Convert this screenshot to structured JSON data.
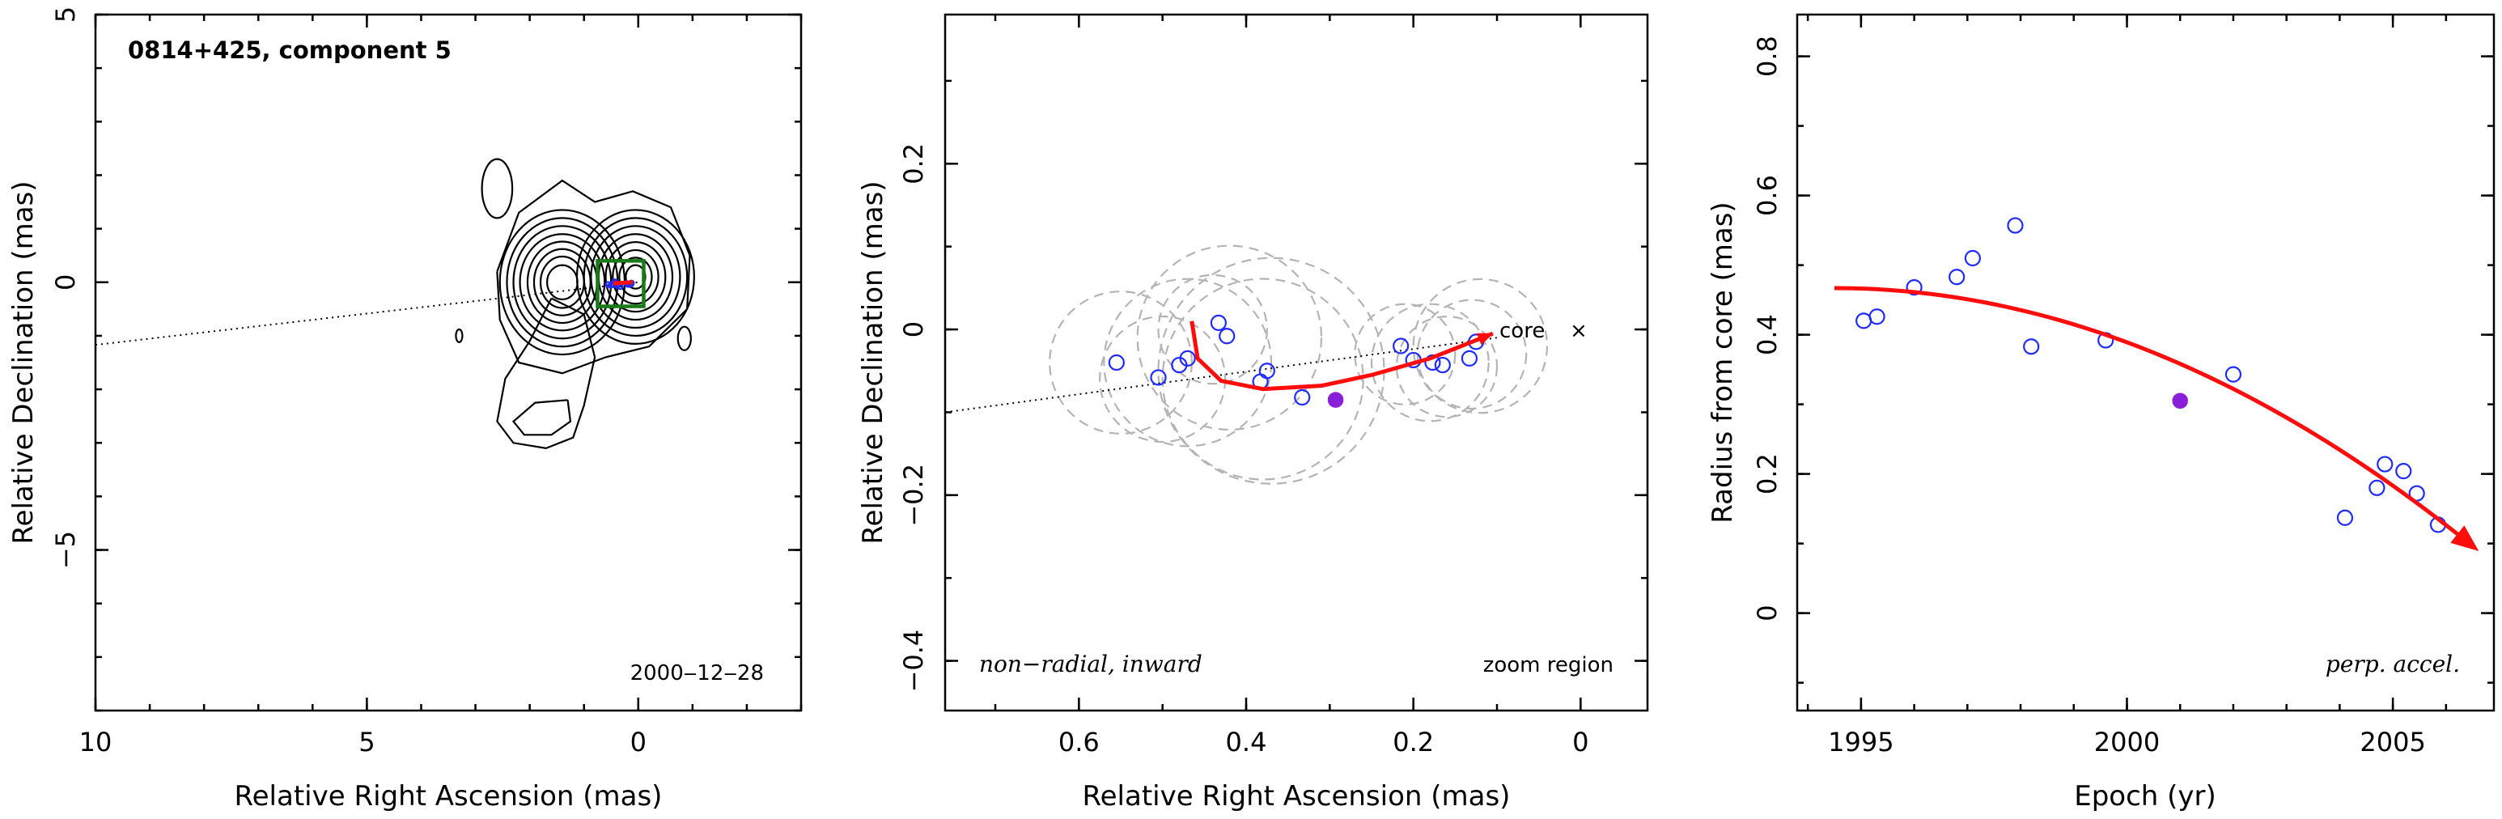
{
  "figure": {
    "colors": {
      "axes": "#000000",
      "contours": "#000000",
      "zoom_box": "#1a7a1a",
      "gaussian_components": "#b4b4b4",
      "open_points": "#1f2cff",
      "filled_point": "#8a1fd9",
      "trend": "#ff0d0d"
    }
  },
  "chart_data": [
    {
      "panel": "map",
      "type": "contour",
      "title": "0814+425, component 5",
      "date_label": "2000‒12‒28",
      "xlabel": "Relative Right Ascension (mas)",
      "ylabel": "Relative Declination (mas)",
      "xlim": [
        10,
        -3
      ],
      "ylim": [
        -8,
        5
      ],
      "xticks": [
        10,
        5,
        0
      ],
      "xtick_labels": [
        "10",
        "5",
        "0"
      ],
      "yticks": [
        5,
        0,
        -5
      ],
      "ytick_labels": [
        "5",
        "0",
        "−5"
      ],
      "x_minor_step": 1,
      "y_minor_step": 1,
      "zoom_region": {
        "ra_from": 0.75,
        "ra_to": -0.1,
        "dec_from": -0.45,
        "dec_to": 0.4
      },
      "jet_axis": {
        "ra": [
          10,
          0
        ],
        "dec": [
          -1.17,
          0
        ]
      },
      "blobs": [
        {
          "ra": 1.4,
          "dec": 0.0,
          "levels": [
            [
              0.28,
              0.32
            ],
            [
              0.4,
              0.48
            ],
            [
              0.52,
              0.62
            ],
            [
              0.64,
              0.76
            ],
            [
              0.78,
              0.9
            ],
            [
              0.9,
              1.05
            ],
            [
              1.02,
              1.2
            ],
            [
              1.15,
              1.35
            ]
          ]
        },
        {
          "ra": 0.05,
          "dec": 0.1,
          "levels": [
            [
              0.18,
              0.22
            ],
            [
              0.3,
              0.36
            ],
            [
              0.42,
              0.5
            ],
            [
              0.55,
              0.65
            ],
            [
              0.68,
              0.8
            ],
            [
              0.82,
              0.95
            ],
            [
              0.95,
              1.1
            ],
            [
              1.08,
              1.25
            ]
          ]
        }
      ],
      "islands": [
        {
          "ra": 2.6,
          "dec": 1.75,
          "rx": 0.28,
          "ry": 0.55
        },
        {
          "ra": 3.3,
          "dec": -1.0,
          "rx": 0.06,
          "ry": 0.12
        },
        {
          "ra": -0.85,
          "dec": -1.05,
          "rx": 0.12,
          "ry": 0.22
        }
      ],
      "south_loop": [
        [
          1.6,
          -0.3
        ],
        [
          2.0,
          -1.1
        ],
        [
          2.45,
          -1.8
        ],
        [
          2.6,
          -2.6
        ],
        [
          2.3,
          -3.0
        ],
        [
          1.7,
          -3.1
        ],
        [
          1.2,
          -2.9
        ],
        [
          1.0,
          -2.3
        ],
        [
          0.8,
          -1.4
        ],
        [
          1.0,
          -0.6
        ],
        [
          1.6,
          -0.3
        ]
      ],
      "south_inner": [
        [
          1.3,
          -2.2
        ],
        [
          1.9,
          -2.25
        ],
        [
          2.3,
          -2.6
        ],
        [
          2.1,
          -2.85
        ],
        [
          1.6,
          -2.85
        ],
        [
          1.25,
          -2.6
        ],
        [
          1.3,
          -2.2
        ]
      ]
    },
    {
      "panel": "zoom",
      "type": "scatter",
      "xlabel": "Relative Right Ascension (mas)",
      "ylabel": "Relative Declination (mas)",
      "xlim": [
        0.76,
        -0.08
      ],
      "ylim": [
        -0.46,
        0.38
      ],
      "xticks": [
        0.6,
        0.4,
        0.2,
        0
      ],
      "xtick_labels": [
        "0.6",
        "0.4",
        "0.2",
        "0"
      ],
      "yticks": [
        0.2,
        0,
        -0.2,
        -0.4
      ],
      "ytick_labels": [
        "0.2",
        "0",
        "−0.2",
        "−0.4"
      ],
      "x_minor_step": 0.1,
      "y_minor_step": 0.1,
      "core_label": "core",
      "core_marker": "×",
      "core": {
        "ra": 0.0,
        "dec": 0.0
      },
      "left_note": "non−radial, inward",
      "right_note": "zoom region",
      "jet_axis": {
        "ra": [
          0.76,
          0.1
        ],
        "dec": [
          -0.1,
          -0.01
        ]
      },
      "points": [
        {
          "ra": 0.555,
          "dec": -0.04
        },
        {
          "ra": 0.505,
          "dec": -0.058
        },
        {
          "ra": 0.48,
          "dec": -0.043
        },
        {
          "ra": 0.47,
          "dec": -0.035
        },
        {
          "ra": 0.433,
          "dec": 0.008
        },
        {
          "ra": 0.423,
          "dec": -0.008
        },
        {
          "ra": 0.383,
          "dec": -0.063
        },
        {
          "ra": 0.375,
          "dec": -0.05
        },
        {
          "ra": 0.333,
          "dec": -0.082
        },
        {
          "ra": 0.215,
          "dec": -0.02
        },
        {
          "ra": 0.2,
          "dec": -0.037
        },
        {
          "ra": 0.177,
          "dec": -0.04
        },
        {
          "ra": 0.165,
          "dec": -0.043
        },
        {
          "ra": 0.133,
          "dec": -0.035
        },
        {
          "ra": 0.125,
          "dec": -0.015
        }
      ],
      "filled_point": {
        "ra": 0.293,
        "dec": -0.085
      },
      "gaussians": [
        {
          "ra": 0.55,
          "dec": -0.04,
          "r": 0.085
        },
        {
          "ra": 0.5,
          "dec": -0.06,
          "r": 0.075
        },
        {
          "ra": 0.47,
          "dec": -0.04,
          "r": 0.1
        },
        {
          "ra": 0.44,
          "dec": 0.0,
          "r": 0.065
        },
        {
          "ra": 0.42,
          "dec": -0.01,
          "r": 0.11
        },
        {
          "ra": 0.38,
          "dec": -0.06,
          "r": 0.12
        },
        {
          "ra": 0.37,
          "dec": -0.05,
          "r": 0.135
        },
        {
          "ra": 0.21,
          "dec": -0.03,
          "r": 0.06
        },
        {
          "ra": 0.18,
          "dec": -0.04,
          "r": 0.07
        },
        {
          "ra": 0.16,
          "dec": -0.045,
          "r": 0.06
        },
        {
          "ra": 0.13,
          "dec": -0.03,
          "r": 0.065
        },
        {
          "ra": 0.12,
          "dec": -0.02,
          "r": 0.08
        }
      ],
      "trend": [
        [
          0.465,
          0.01
        ],
        [
          0.458,
          -0.035
        ],
        [
          0.43,
          -0.062
        ],
        [
          0.38,
          -0.072
        ],
        [
          0.31,
          -0.068
        ],
        [
          0.25,
          -0.055
        ],
        [
          0.18,
          -0.035
        ],
        [
          0.13,
          -0.015
        ],
        [
          0.105,
          -0.005
        ]
      ]
    },
    {
      "panel": "radius",
      "type": "scatter",
      "xlabel": "Epoch (yr)",
      "ylabel": "Radius from core (mas)",
      "xlim": [
        1993.8,
        2006.9
      ],
      "ylim": [
        -0.14,
        0.86
      ],
      "xticks": [
        1995,
        2000,
        2005
      ],
      "xtick_labels": [
        "1995",
        "2000",
        "2005"
      ],
      "yticks": [
        0,
        0.2,
        0.4,
        0.6,
        0.8
      ],
      "ytick_labels": [
        "0",
        "0.2",
        "0.4",
        "0.6",
        "0.8"
      ],
      "x_minor_step": 1,
      "y_minor_step": 0.1,
      "note": "perp. accel.",
      "points": [
        {
          "x": 1995.05,
          "y": 0.42
        },
        {
          "x": 1995.3,
          "y": 0.426
        },
        {
          "x": 1996.0,
          "y": 0.468
        },
        {
          "x": 1996.8,
          "y": 0.483
        },
        {
          "x": 1997.1,
          "y": 0.51
        },
        {
          "x": 1997.9,
          "y": 0.557
        },
        {
          "x": 1998.2,
          "y": 0.383
        },
        {
          "x": 1999.6,
          "y": 0.392
        },
        {
          "x": 2002.0,
          "y": 0.343
        },
        {
          "x": 2004.1,
          "y": 0.137
        },
        {
          "x": 2004.7,
          "y": 0.18
        },
        {
          "x": 2004.85,
          "y": 0.214
        },
        {
          "x": 2005.2,
          "y": 0.204
        },
        {
          "x": 2005.45,
          "y": 0.172
        },
        {
          "x": 2005.85,
          "y": 0.127
        }
      ],
      "filled_point": {
        "x": 2001.0,
        "y": 0.305
      },
      "trend": {
        "x_start": 1994.5,
        "x_end": 2006.6,
        "y_start": 0.467,
        "y_end": 0.09
      }
    }
  ]
}
